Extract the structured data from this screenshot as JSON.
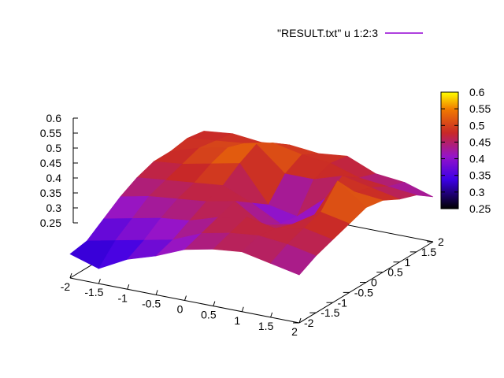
{
  "chart_data": {
    "type": "surface3d",
    "legend": {
      "label": "\"RESULT.txt\" u 1:2:3",
      "color": "#9400d3"
    },
    "x_ticks": [
      "-2",
      "-1.5",
      "-1",
      "-0.5",
      "0",
      "0.5",
      "1",
      "1.5",
      "2"
    ],
    "y_ticks": [
      "-2",
      "-1.5",
      "-1",
      "-0.5",
      "0",
      "0.5",
      "1",
      "1.5",
      "2"
    ],
    "z_ticks": [
      "0.25",
      "0.3",
      "0.35",
      "0.4",
      "0.45",
      "0.5",
      "0.55",
      "0.6"
    ],
    "colorbar_ticks": [
      "0.25",
      "0.3",
      "0.35",
      "0.4",
      "0.45",
      "0.5",
      "0.55",
      "0.6"
    ],
    "xlim": [
      -2,
      2
    ],
    "ylim": [
      -2,
      2
    ],
    "zlim": [
      0.25,
      0.6
    ],
    "cblim": [
      0.25,
      0.6
    ],
    "palette": "black-blue-purple-red-orange-yellow",
    "x": [
      -2,
      -1.5,
      -1,
      -0.5,
      0,
      0.5,
      1,
      1.5,
      2
    ],
    "y": [
      -2,
      -1.5,
      -1,
      -0.5,
      0,
      0.5,
      1,
      1.5,
      2
    ],
    "z": [
      [
        0.33,
        0.34,
        0.38,
        0.42,
        0.45,
        0.47,
        0.47,
        0.48,
        0.47
      ],
      [
        0.3,
        0.36,
        0.4,
        0.44,
        0.46,
        0.48,
        0.5,
        0.49,
        0.48
      ],
      [
        0.35,
        0.38,
        0.42,
        0.45,
        0.47,
        0.5,
        0.52,
        0.5,
        0.47
      ],
      [
        0.38,
        0.4,
        0.43,
        0.46,
        0.48,
        0.52,
        0.55,
        0.52,
        0.48
      ],
      [
        0.42,
        0.44,
        0.46,
        0.48,
        0.44,
        0.4,
        0.47,
        0.5,
        0.47
      ],
      [
        0.44,
        0.46,
        0.48,
        0.42,
        0.39,
        0.38,
        0.47,
        0.49,
        0.48
      ],
      [
        0.45,
        0.47,
        0.46,
        0.44,
        0.41,
        0.46,
        0.5,
        0.46,
        0.44
      ],
      [
        0.43,
        0.46,
        0.48,
        0.5,
        0.57,
        0.5,
        0.48,
        0.45,
        0.43
      ],
      [
        0.41,
        0.44,
        0.46,
        0.48,
        0.5,
        0.49,
        0.46,
        0.44,
        0.4
      ]
    ]
  }
}
